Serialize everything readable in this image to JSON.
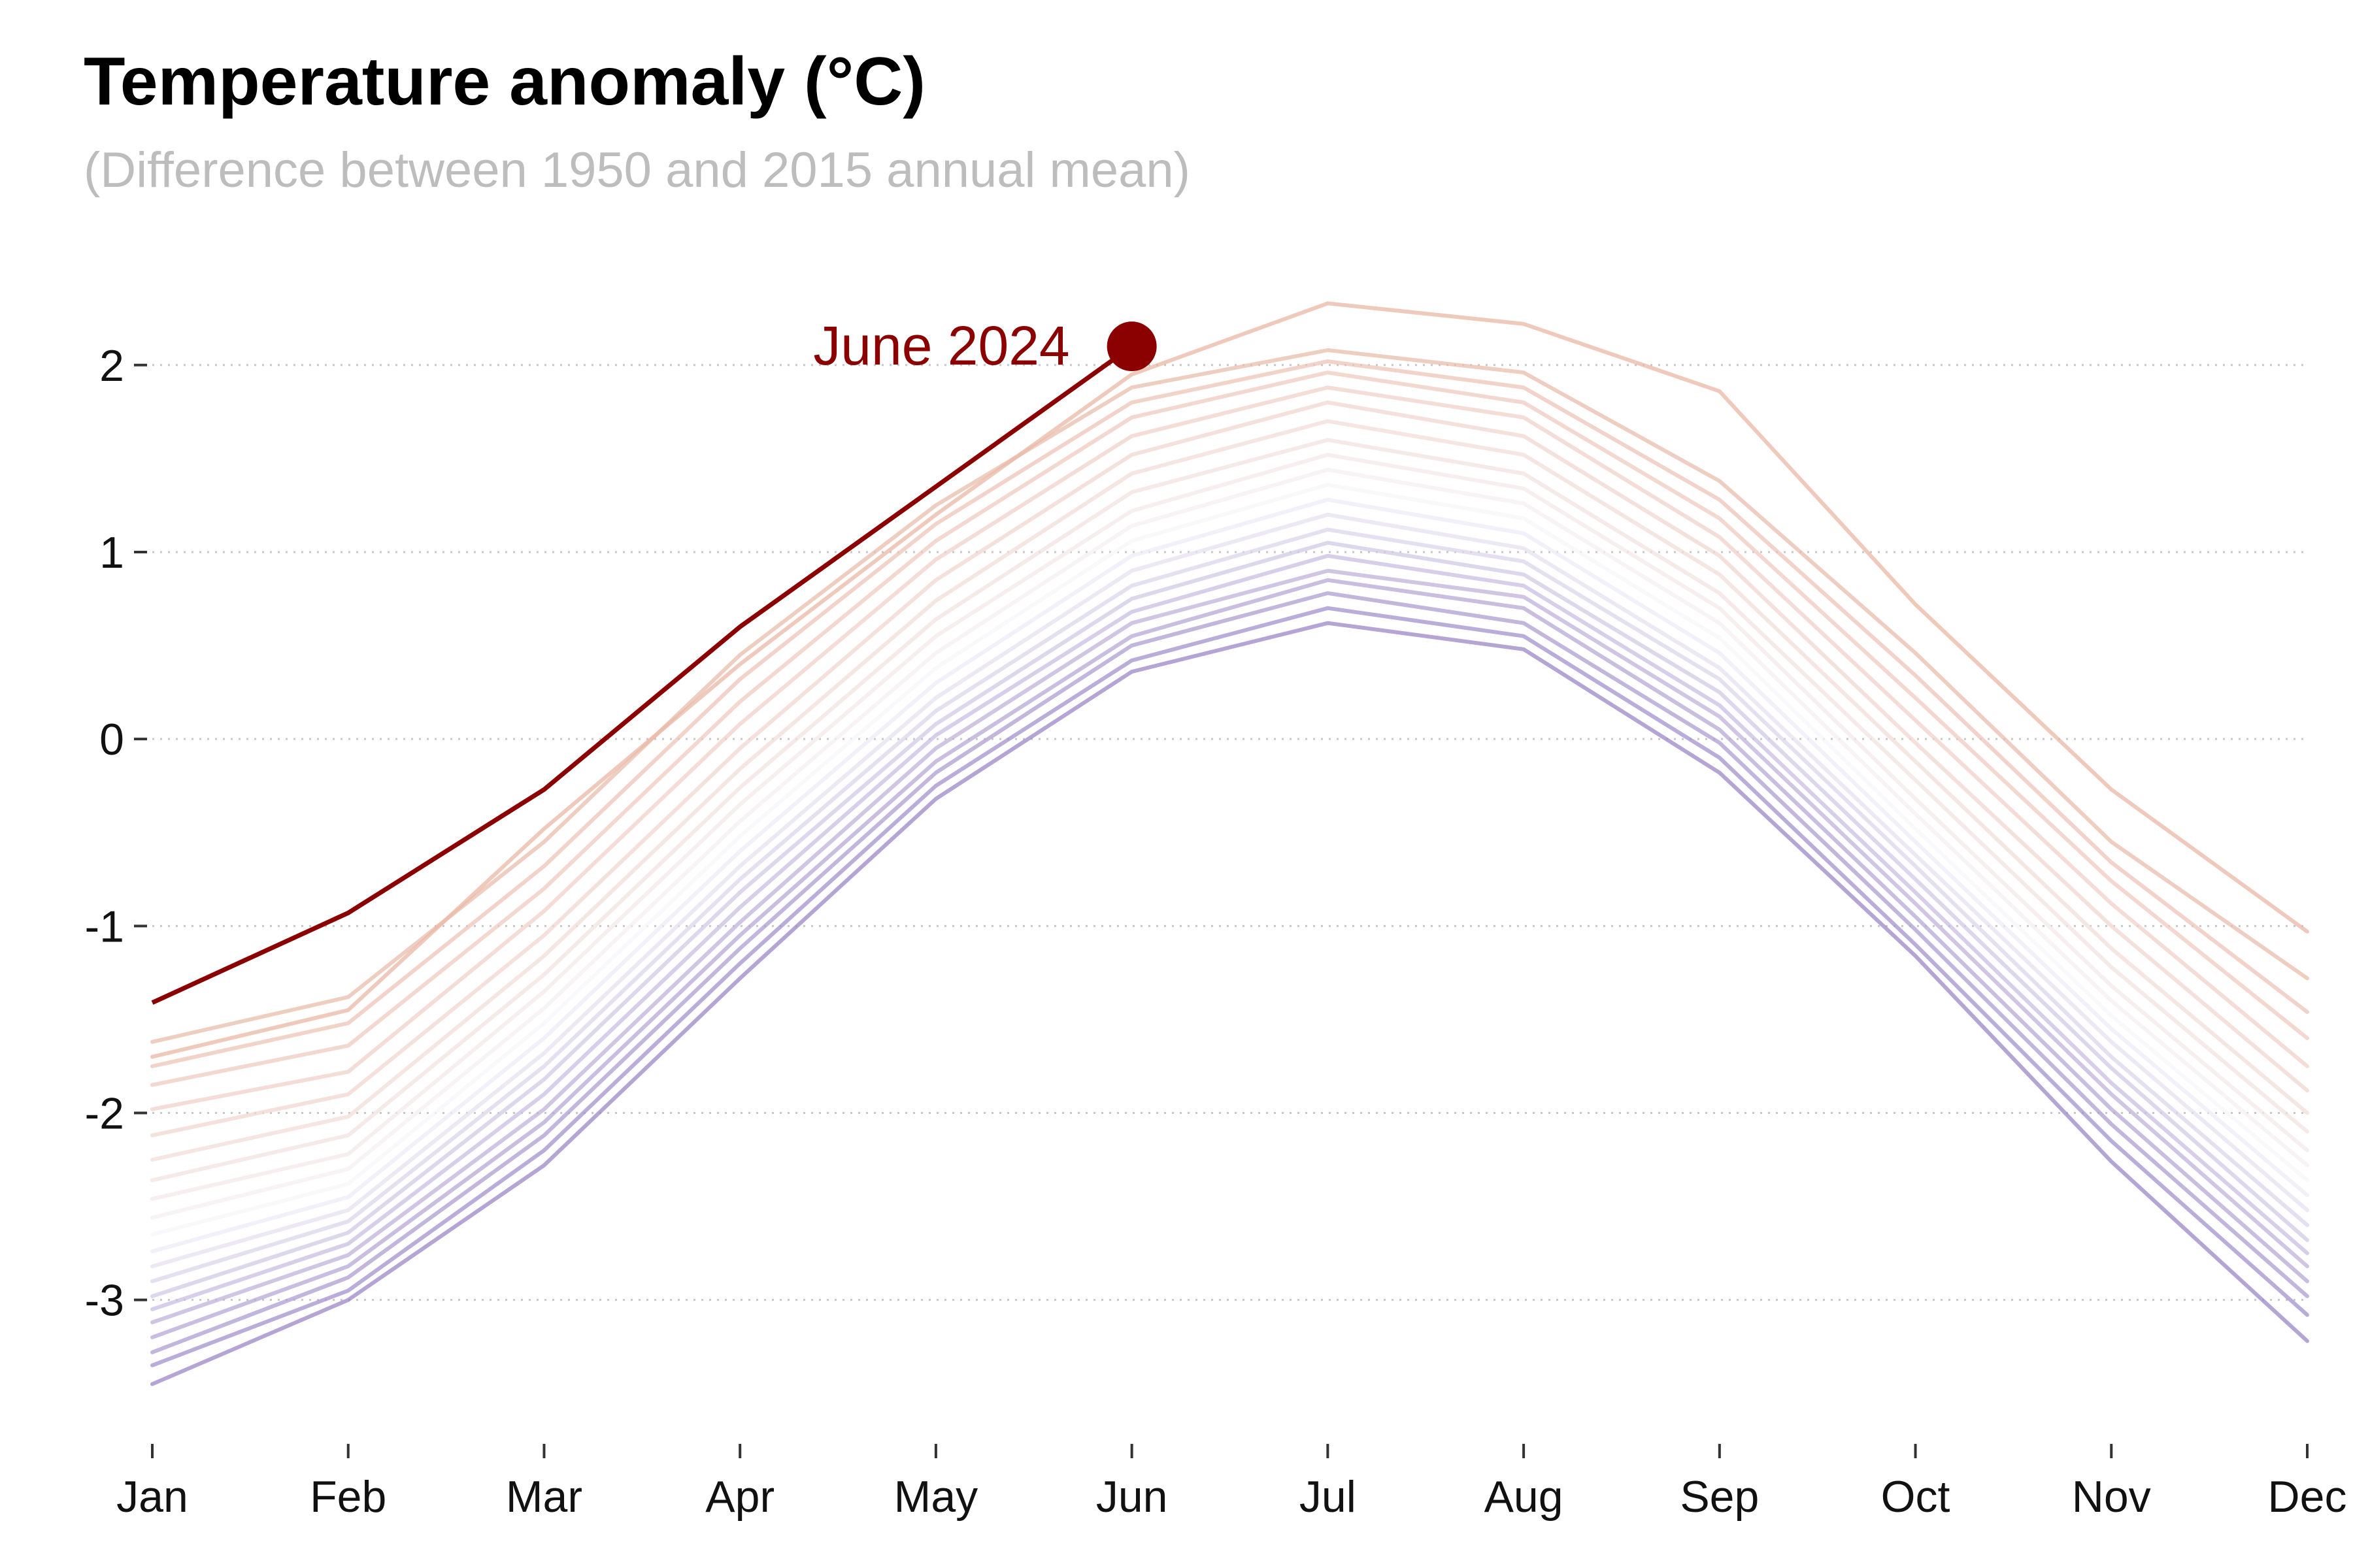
{
  "chart_data": {
    "type": "line",
    "title": "Temperature anomaly (°C)",
    "subtitle": "(Difference between 1950 and 2015 annual mean)",
    "xlabel": "",
    "ylabel": "",
    "categories": [
      "Jan",
      "Feb",
      "Mar",
      "Apr",
      "May",
      "Jun",
      "Jul",
      "Aug",
      "Sep",
      "Oct",
      "Nov",
      "Dec"
    ],
    "ylim": [
      -3.7,
      2.45
    ],
    "yticks": [
      -3,
      -2,
      -1,
      0,
      1,
      2
    ],
    "ytick_labels": [
      "-3",
      "-2",
      "-1",
      "0",
      "1",
      "2"
    ],
    "grid": "horizontal dotted",
    "legend": "none",
    "colors": {
      "cold_end": "#9b87c7",
      "mid": "#f7f6fa",
      "warm_end": "#e9b8a6",
      "highlight": "#8b0000",
      "grid": "#c8c8c8"
    },
    "highlight": {
      "name": "June 2024",
      "label": "June 2024",
      "values": [
        -1.41,
        -0.93,
        -0.27,
        0.6,
        1.35,
        2.1
      ],
      "point_month_index": 5,
      "point_value": 2.1
    },
    "series": [
      {
        "values": [
          -3.45,
          -3.0,
          -2.28,
          -1.28,
          -0.32,
          0.36,
          0.62,
          0.48,
          -0.18,
          -1.16,
          -2.26,
          -3.22
        ]
      },
      {
        "values": [
          -3.35,
          -2.95,
          -2.2,
          -1.2,
          -0.25,
          0.42,
          0.7,
          0.55,
          -0.1,
          -1.1,
          -2.15,
          -3.08
        ]
      },
      {
        "values": [
          -3.28,
          -2.88,
          -2.12,
          -1.12,
          -0.18,
          0.5,
          0.78,
          0.62,
          -0.02,
          -1.02,
          -2.06,
          -2.98
        ]
      },
      {
        "values": [
          -3.2,
          -2.82,
          -2.05,
          -1.05,
          -0.12,
          0.55,
          0.85,
          0.7,
          0.05,
          -0.95,
          -1.98,
          -2.9
        ]
      },
      {
        "values": [
          -3.12,
          -2.76,
          -1.98,
          -0.98,
          -0.05,
          0.62,
          0.9,
          0.76,
          0.12,
          -0.88,
          -1.9,
          -2.82
        ]
      },
      {
        "values": [
          -3.05,
          -2.7,
          -1.9,
          -0.9,
          0.02,
          0.68,
          0.98,
          0.82,
          0.18,
          -0.82,
          -1.84,
          -2.75
        ]
      },
      {
        "values": [
          -2.98,
          -2.64,
          -1.82,
          -0.82,
          0.08,
          0.75,
          1.05,
          0.88,
          0.25,
          -0.75,
          -1.76,
          -2.68
        ]
      },
      {
        "values": [
          -2.9,
          -2.58,
          -1.75,
          -0.75,
          0.15,
          0.82,
          1.12,
          0.95,
          0.32,
          -0.68,
          -1.7,
          -2.6
        ]
      },
      {
        "values": [
          -2.82,
          -2.52,
          -1.68,
          -0.68,
          0.22,
          0.9,
          1.2,
          1.02,
          0.38,
          -0.62,
          -1.62,
          -2.52
        ]
      },
      {
        "values": [
          -2.74,
          -2.45,
          -1.6,
          -0.6,
          0.3,
          0.98,
          1.28,
          1.1,
          0.46,
          -0.55,
          -1.55,
          -2.44
        ]
      },
      {
        "values": [
          -2.65,
          -2.38,
          -1.52,
          -0.52,
          0.38,
          1.06,
          1.36,
          1.18,
          0.54,
          -0.48,
          -1.48,
          -2.36
        ]
      },
      {
        "values": [
          -2.56,
          -2.3,
          -1.44,
          -0.44,
          0.46,
          1.14,
          1.44,
          1.26,
          0.62,
          -0.4,
          -1.4,
          -2.28
        ]
      },
      {
        "values": [
          -2.46,
          -2.22,
          -1.35,
          -0.35,
          0.55,
          1.22,
          1.52,
          1.34,
          0.7,
          -0.32,
          -1.32,
          -2.2
        ]
      },
      {
        "values": [
          -2.36,
          -2.12,
          -1.26,
          -0.26,
          0.64,
          1.32,
          1.6,
          1.42,
          0.78,
          -0.22,
          -1.22,
          -2.1
        ]
      },
      {
        "values": [
          -2.25,
          -2.02,
          -1.16,
          -0.16,
          0.74,
          1.42,
          1.7,
          1.52,
          0.88,
          -0.12,
          -1.12,
          -2.0
        ]
      },
      {
        "values": [
          -2.12,
          -1.9,
          -1.05,
          -0.05,
          0.85,
          1.52,
          1.8,
          1.62,
          0.98,
          -0.02,
          -1.0,
          -1.88
        ]
      },
      {
        "values": [
          -1.98,
          -1.78,
          -0.92,
          0.08,
          0.96,
          1.62,
          1.88,
          1.72,
          1.08,
          0.1,
          -0.88,
          -1.75
        ]
      },
      {
        "values": [
          -1.85,
          -1.64,
          -0.8,
          0.2,
          1.06,
          1.72,
          1.96,
          1.8,
          1.18,
          0.22,
          -0.76,
          -1.6
        ]
      },
      {
        "values": [
          -1.75,
          -1.52,
          -0.68,
          0.32,
          1.15,
          1.8,
          2.02,
          1.88,
          1.28,
          0.34,
          -0.66,
          -1.46
        ]
      },
      {
        "values": [
          -1.62,
          -1.38,
          -0.55,
          0.45,
          1.25,
          1.88,
          2.08,
          1.96,
          1.38,
          0.46,
          -0.55,
          -1.28
        ]
      },
      {
        "values": [
          -1.7,
          -1.45,
          -0.48,
          0.4,
          1.2,
          1.95,
          2.33,
          2.22,
          1.86,
          0.72,
          -0.27,
          -1.03
        ]
      }
    ]
  }
}
